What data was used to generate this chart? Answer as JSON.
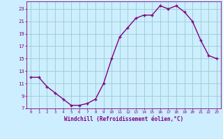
{
  "x": [
    0,
    1,
    2,
    3,
    4,
    5,
    6,
    7,
    8,
    9,
    10,
    11,
    12,
    13,
    14,
    15,
    16,
    17,
    18,
    19,
    20,
    21,
    22,
    23
  ],
  "y": [
    12,
    12,
    10.5,
    9.5,
    8.5,
    7.5,
    7.5,
    7.8,
    8.5,
    11,
    15,
    18.5,
    20,
    21.5,
    22,
    22,
    23.5,
    23,
    23.5,
    22.5,
    21,
    18,
    15.5,
    15
  ],
  "line_color": "#800080",
  "marker": "+",
  "bg_color": "#cceeff",
  "grid_color": "#99cccc",
  "xlabel": "Windchill (Refroidissement éolien,°C)",
  "xlabel_color": "#800080",
  "tick_color": "#800080",
  "yticks": [
    7,
    9,
    11,
    13,
    15,
    17,
    19,
    21,
    23
  ],
  "xticks": [
    0,
    1,
    2,
    3,
    4,
    5,
    6,
    7,
    8,
    9,
    10,
    11,
    12,
    13,
    14,
    15,
    16,
    17,
    18,
    19,
    20,
    21,
    22,
    23
  ],
  "xlim": [
    -0.5,
    23.5
  ],
  "ylim": [
    7,
    24.2
  ]
}
